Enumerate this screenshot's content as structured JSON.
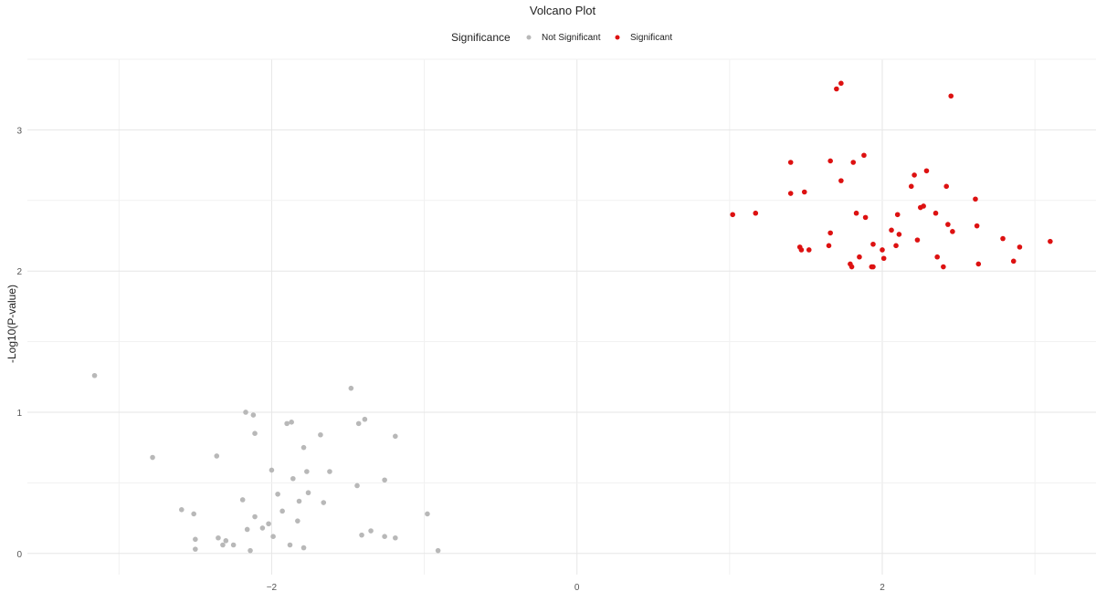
{
  "chart_data": {
    "type": "scatter",
    "title": "Volcano Plot",
    "xlabel": "",
    "ylabel": "-Log10(P-value)",
    "xlim": [
      -3.6,
      3.4
    ],
    "ylim": [
      -0.15,
      3.5
    ],
    "x_ticks": [
      -2,
      0,
      2
    ],
    "y_ticks": [
      0,
      1,
      2,
      3
    ],
    "grid": true,
    "legend": {
      "title": "Significance",
      "placement": "top",
      "entries": [
        "Not Significant",
        "Significant"
      ]
    },
    "colors": {
      "Not Significant": "#b8b8b8",
      "Significant": "#dd1111"
    },
    "series": [
      {
        "name": "Not Significant",
        "points": [
          [
            -3.16,
            1.26
          ],
          [
            -2.78,
            0.68
          ],
          [
            -2.59,
            0.31
          ],
          [
            -2.51,
            0.28
          ],
          [
            -2.5,
            0.1
          ],
          [
            -2.5,
            0.03
          ],
          [
            -2.36,
            0.69
          ],
          [
            -2.35,
            0.11
          ],
          [
            -2.32,
            0.06
          ],
          [
            -2.3,
            0.09
          ],
          [
            -2.25,
            0.06
          ],
          [
            -2.19,
            0.38
          ],
          [
            -2.17,
            1.0
          ],
          [
            -2.16,
            0.17
          ],
          [
            -2.14,
            0.02
          ],
          [
            -2.12,
            0.98
          ],
          [
            -2.11,
            0.85
          ],
          [
            -2.11,
            0.26
          ],
          [
            -2.06,
            0.18
          ],
          [
            -2.02,
            0.21
          ],
          [
            -2.0,
            0.59
          ],
          [
            -1.99,
            0.12
          ],
          [
            -1.96,
            0.42
          ],
          [
            -1.93,
            0.3
          ],
          [
            -1.9,
            0.92
          ],
          [
            -1.88,
            0.06
          ],
          [
            -1.87,
            0.93
          ],
          [
            -1.86,
            0.53
          ],
          [
            -1.83,
            0.23
          ],
          [
            -1.82,
            0.37
          ],
          [
            -1.79,
            0.75
          ],
          [
            -1.79,
            0.04
          ],
          [
            -1.77,
            0.58
          ],
          [
            -1.76,
            0.43
          ],
          [
            -1.68,
            0.84
          ],
          [
            -1.66,
            0.36
          ],
          [
            -1.62,
            0.58
          ],
          [
            -1.48,
            1.17
          ],
          [
            -1.44,
            0.48
          ],
          [
            -1.43,
            0.92
          ],
          [
            -1.41,
            0.13
          ],
          [
            -1.39,
            0.95
          ],
          [
            -1.35,
            0.16
          ],
          [
            -1.26,
            0.52
          ],
          [
            -1.26,
            0.12
          ],
          [
            -1.19,
            0.83
          ],
          [
            -1.19,
            0.11
          ],
          [
            -0.98,
            0.28
          ],
          [
            -0.91,
            0.02
          ]
        ]
      },
      {
        "name": "Significant",
        "points": [
          [
            1.02,
            2.4
          ],
          [
            1.17,
            2.41
          ],
          [
            1.4,
            2.77
          ],
          [
            1.4,
            2.55
          ],
          [
            1.46,
            2.17
          ],
          [
            1.47,
            2.15
          ],
          [
            1.49,
            2.56
          ],
          [
            1.52,
            2.15
          ],
          [
            1.65,
            2.18
          ],
          [
            1.66,
            2.27
          ],
          [
            1.66,
            2.78
          ],
          [
            1.7,
            3.29
          ],
          [
            1.73,
            3.33
          ],
          [
            1.73,
            2.64
          ],
          [
            1.79,
            2.05
          ],
          [
            1.8,
            2.03
          ],
          [
            1.81,
            2.77
          ],
          [
            1.83,
            2.41
          ],
          [
            1.85,
            2.1
          ],
          [
            1.88,
            2.82
          ],
          [
            1.89,
            2.38
          ],
          [
            1.93,
            2.03
          ],
          [
            1.94,
            2.03
          ],
          [
            1.94,
            2.19
          ],
          [
            2.0,
            2.15
          ],
          [
            2.01,
            2.09
          ],
          [
            2.06,
            2.29
          ],
          [
            2.09,
            2.18
          ],
          [
            2.1,
            2.4
          ],
          [
            2.11,
            2.26
          ],
          [
            2.19,
            2.6
          ],
          [
            2.21,
            2.68
          ],
          [
            2.23,
            2.22
          ],
          [
            2.25,
            2.45
          ],
          [
            2.27,
            2.46
          ],
          [
            2.29,
            2.71
          ],
          [
            2.35,
            2.41
          ],
          [
            2.36,
            2.1
          ],
          [
            2.4,
            2.03
          ],
          [
            2.42,
            2.6
          ],
          [
            2.43,
            2.33
          ],
          [
            2.45,
            3.24
          ],
          [
            2.46,
            2.28
          ],
          [
            2.61,
            2.51
          ],
          [
            2.62,
            2.32
          ],
          [
            2.63,
            2.05
          ],
          [
            2.79,
            2.23
          ],
          [
            2.86,
            2.07
          ],
          [
            2.9,
            2.17
          ],
          [
            3.1,
            2.21
          ]
        ]
      }
    ]
  }
}
